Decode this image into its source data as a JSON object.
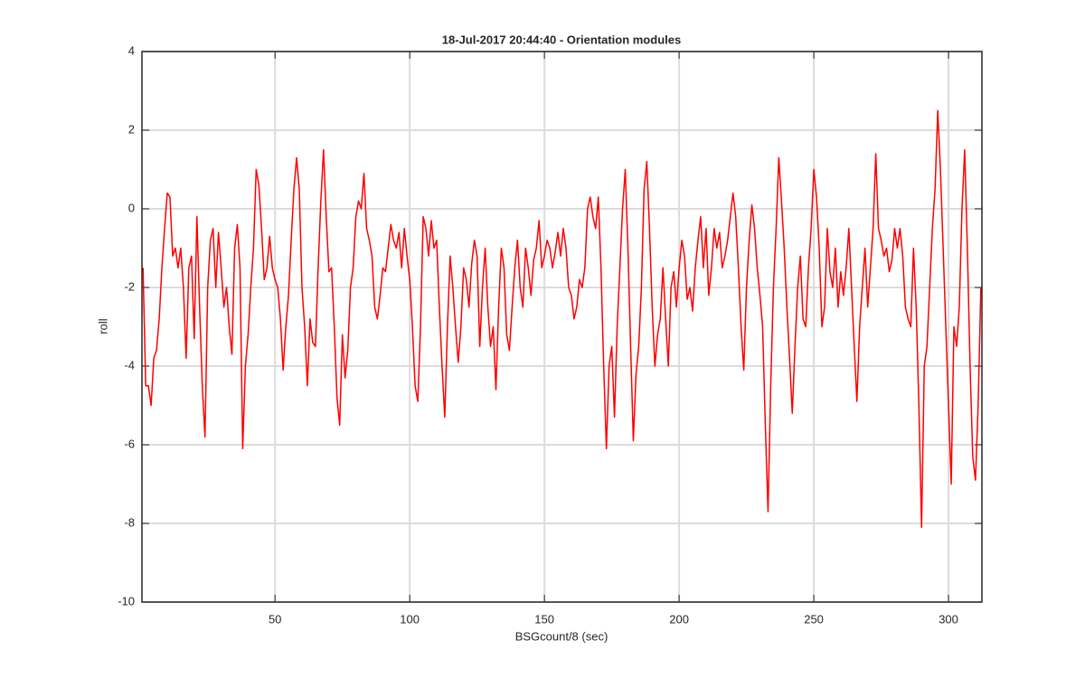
{
  "chart_data": {
    "type": "line",
    "title": "18-Jul-2017 20:44:40 - Orientation modules",
    "x_label": "BSGcount/8 (sec)",
    "y_label": "roll",
    "color": "#ff0000",
    "grid": true,
    "xlim": [
      0.6,
      312.4
    ],
    "ylim": [
      -10,
      4
    ],
    "xticks": [
      50,
      100,
      150,
      200,
      250,
      300
    ],
    "yticks": [
      -10,
      -8,
      -6,
      -4,
      -2,
      0,
      2,
      4
    ],
    "x": [
      1,
      2,
      3,
      4,
      5,
      6,
      7,
      8,
      9,
      10,
      11,
      12,
      13,
      14,
      15,
      16,
      17,
      18,
      19,
      20,
      21,
      22,
      23,
      24,
      25,
      26,
      27,
      28,
      29,
      30,
      31,
      32,
      33,
      34,
      35,
      36,
      37,
      38,
      39,
      40,
      41,
      42,
      43,
      44,
      45,
      46,
      47,
      48,
      49,
      50,
      51,
      52,
      53,
      54,
      55,
      56,
      57,
      58,
      59,
      60,
      61,
      62,
      63,
      64,
      65,
      66,
      67,
      68,
      69,
      70,
      71,
      72,
      73,
      74,
      75,
      76,
      77,
      78,
      79,
      80,
      81,
      82,
      83,
      84,
      85,
      86,
      87,
      88,
      89,
      90,
      91,
      92,
      93,
      94,
      95,
      96,
      97,
      98,
      99,
      100,
      101,
      102,
      103,
      104,
      105,
      106,
      107,
      108,
      109,
      110,
      111,
      112,
      113,
      114,
      115,
      116,
      117,
      118,
      119,
      120,
      121,
      122,
      123,
      124,
      125,
      126,
      127,
      128,
      129,
      130,
      131,
      132,
      133,
      134,
      135,
      136,
      137,
      138,
      139,
      140,
      141,
      142,
      143,
      144,
      145,
      146,
      147,
      148,
      149,
      150,
      151,
      152,
      153,
      154,
      155,
      156,
      157,
      158,
      159,
      160,
      161,
      162,
      163,
      164,
      165,
      166,
      167,
      168,
      169,
      170,
      171,
      172,
      173,
      174,
      175,
      176,
      177,
      178,
      179,
      180,
      181,
      182,
      183,
      184,
      185,
      186,
      187,
      188,
      189,
      190,
      191,
      192,
      193,
      194,
      195,
      196,
      197,
      198,
      199,
      200,
      201,
      202,
      203,
      204,
      205,
      206,
      207,
      208,
      209,
      210,
      211,
      212,
      213,
      214,
      215,
      216,
      217,
      218,
      219,
      220,
      221,
      222,
      223,
      224,
      225,
      226,
      227,
      228,
      229,
      230,
      231,
      232,
      233,
      234,
      235,
      236,
      237,
      238,
      239,
      240,
      241,
      242,
      243,
      244,
      245,
      246,
      247,
      248,
      249,
      250,
      251,
      252,
      253,
      254,
      255,
      256,
      257,
      258,
      259,
      260,
      261,
      262,
      263,
      264,
      265,
      266,
      267,
      268,
      269,
      270,
      271,
      272,
      273,
      274,
      275,
      276,
      277,
      278,
      279,
      280,
      281,
      282,
      283,
      284,
      285,
      286,
      287,
      288,
      289,
      290,
      291,
      292,
      293,
      294,
      295,
      296,
      297,
      298,
      299,
      300,
      301,
      302,
      303,
      304,
      305,
      306,
      307,
      308,
      309,
      310,
      311,
      312
    ],
    "values": [
      -1.5,
      -4.5,
      -4.5,
      -5.0,
      -3.8,
      -3.6,
      -2.8,
      -1.5,
      -0.5,
      0.4,
      0.3,
      -1.2,
      -1.0,
      -1.5,
      -1.0,
      -2.0,
      -3.8,
      -1.5,
      -1.2,
      -3.3,
      -0.2,
      -2.5,
      -4.5,
      -5.8,
      -2.0,
      -0.8,
      -0.5,
      -2.0,
      -0.6,
      -1.5,
      -2.5,
      -2.0,
      -3.0,
      -3.7,
      -1.0,
      -0.4,
      -1.5,
      -6.1,
      -4.0,
      -3.2,
      -2.0,
      -1.0,
      1.0,
      0.6,
      -0.5,
      -1.8,
      -1.5,
      -0.7,
      -1.5,
      -1.8,
      -2.0,
      -2.8,
      -4.1,
      -3.0,
      -2.2,
      -0.8,
      0.5,
      1.3,
      0.5,
      -2.0,
      -3.0,
      -4.5,
      -2.8,
      -3.4,
      -3.5,
      -1.5,
      0.2,
      1.5,
      -0.2,
      -1.6,
      -1.5,
      -3.0,
      -4.8,
      -5.5,
      -3.2,
      -4.3,
      -3.6,
      -2.0,
      -1.5,
      -0.2,
      0.2,
      0.0,
      0.9,
      -0.5,
      -0.8,
      -1.2,
      -2.5,
      -2.8,
      -2.2,
      -1.5,
      -1.6,
      -1.0,
      -0.4,
      -0.8,
      -1.0,
      -0.6,
      -1.5,
      -0.5,
      -1.2,
      -1.8,
      -3.0,
      -4.5,
      -4.9,
      -3.0,
      -0.2,
      -0.5,
      -1.2,
      -0.3,
      -1.0,
      -0.8,
      -2.5,
      -4.0,
      -5.3,
      -3.0,
      -1.2,
      -2.0,
      -3.0,
      -3.9,
      -3.0,
      -1.5,
      -1.8,
      -2.5,
      -1.4,
      -0.8,
      -1.2,
      -3.5,
      -2.0,
      -1.0,
      -2.5,
      -3.5,
      -3.0,
      -4.6,
      -2.5,
      -1.0,
      -1.5,
      -3.2,
      -3.6,
      -2.5,
      -1.5,
      -0.8,
      -2.0,
      -2.5,
      -1.0,
      -1.5,
      -2.2,
      -1.3,
      -1.0,
      -0.3,
      -1.5,
      -1.2,
      -0.8,
      -1.0,
      -1.5,
      -1.1,
      -0.6,
      -1.2,
      -0.5,
      -1.0,
      -2.0,
      -2.2,
      -2.8,
      -2.5,
      -1.8,
      -2.0,
      -1.5,
      0.0,
      0.3,
      -0.2,
      -0.5,
      0.3,
      -1.5,
      -4.0,
      -6.1,
      -4.0,
      -3.5,
      -5.3,
      -3.0,
      -1.5,
      0.0,
      1.0,
      -1.0,
      -3.5,
      -5.9,
      -4.2,
      -3.5,
      -2.0,
      0.5,
      1.2,
      -0.5,
      -2.5,
      -4.0,
      -3.2,
      -2.8,
      -1.5,
      -2.8,
      -4.0,
      -2.0,
      -1.6,
      -2.5,
      -1.5,
      -0.8,
      -1.2,
      -2.3,
      -2.0,
      -2.6,
      -1.5,
      -0.8,
      -0.2,
      -1.5,
      -0.5,
      -2.2,
      -1.5,
      -0.5,
      -1.0,
      -0.6,
      -1.5,
      -1.2,
      -0.8,
      -0.2,
      0.4,
      -0.2,
      -1.5,
      -3.0,
      -4.1,
      -2.0,
      -0.8,
      0.1,
      -0.5,
      -1.5,
      -2.2,
      -3.0,
      -5.5,
      -7.7,
      -4.5,
      -2.0,
      -0.5,
      1.3,
      0.2,
      -1.0,
      -2.5,
      -3.8,
      -5.2,
      -3.5,
      -2.0,
      -1.2,
      -2.8,
      -3.0,
      -1.5,
      -0.5,
      1.0,
      0.3,
      -1.0,
      -3.0,
      -2.5,
      -0.5,
      -1.6,
      -2.0,
      -1.0,
      -2.5,
      -1.6,
      -2.2,
      -1.5,
      -0.5,
      -2.0,
      -3.5,
      -4.9,
      -3.0,
      -2.0,
      -1.0,
      -2.5,
      -1.5,
      -0.5,
      1.4,
      -0.5,
      -0.8,
      -1.2,
      -1.0,
      -1.6,
      -1.3,
      -0.5,
      -1.0,
      -0.5,
      -1.2,
      -2.5,
      -2.8,
      -3.0,
      -1.0,
      -2.5,
      -5.0,
      -8.1,
      -4.0,
      -3.5,
      -2.0,
      -0.5,
      0.5,
      2.5,
      1.0,
      -1.0,
      -3.0,
      -5.0,
      -7.0,
      -3.0,
      -3.5,
      -2.5,
      0.0,
      1.5,
      -1.0,
      -4.0,
      -6.3,
      -6.9,
      -5.0,
      -2.0
    ]
  }
}
